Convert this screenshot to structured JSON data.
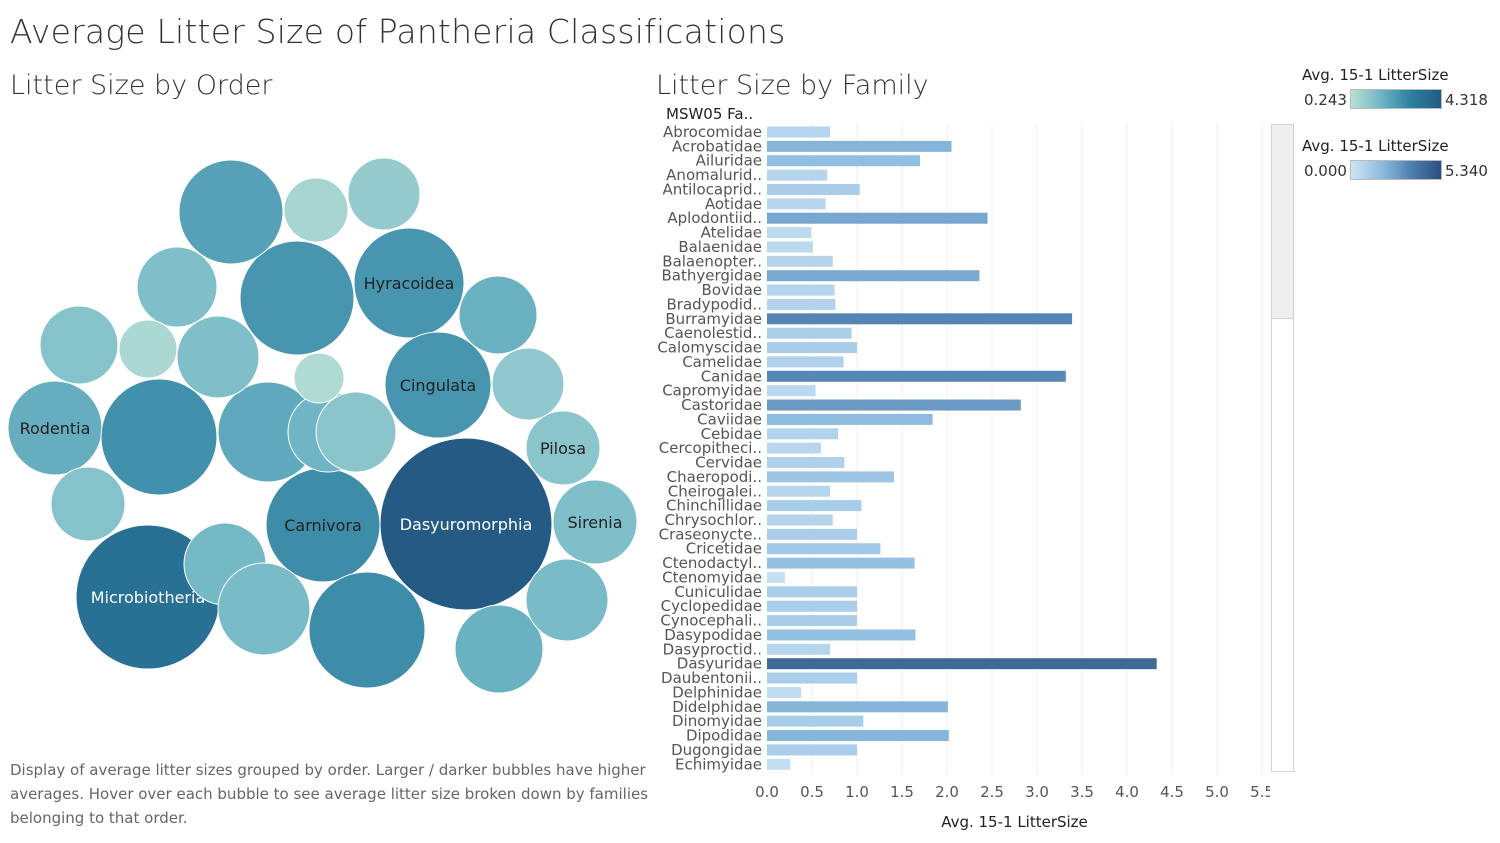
{
  "dashboard_title": "Average Litter Size of Pantheria Classifications",
  "order_view": {
    "title": "Litter Size by Order"
  },
  "family_view": {
    "title": "Litter Size by Family",
    "column_header": "MSW05 Fa.."
  },
  "description": "Display of average litter sizes grouped by order. Larger / darker bubbles have higher averages. Hover over each bubble to see average litter size broken down by families belonging to that order.",
  "legends": [
    {
      "title": "Avg. 15-1 LitterSize",
      "min_label": "0.243",
      "max_label": "4.318",
      "colors": [
        "#b9e0d6",
        "#6fb5c5",
        "#2b7f9f",
        "#255a85"
      ]
    },
    {
      "title": "Avg. 15-1 LitterSize",
      "min_label": "0.000",
      "max_label": "5.340",
      "colors": [
        "#cde4f4",
        "#8fbde0",
        "#4e7fb0",
        "#2a4e7e"
      ]
    }
  ],
  "chart_data": [
    {
      "type": "bubble",
      "title": "Litter Size by Order",
      "color_range": [
        0.243,
        4.318
      ],
      "bubbles": [
        {
          "label": "Dasyuromorphia",
          "value": 4.3
        },
        {
          "label": "Microbiotheria",
          "value": 3.5
        },
        {
          "label": "Carnivora",
          "value": 2.6
        },
        {
          "label": "Hyracoidea",
          "value": 2.4
        },
        {
          "label": "Cingulata",
          "value": 2.4
        },
        {
          "label": "Rodentia",
          "value": 1.8
        },
        {
          "label": "Sirenia",
          "value": 1.3
        },
        {
          "label": "Pilosa",
          "value": 1.1
        },
        {
          "label": "",
          "value": 2.6
        },
        {
          "label": "",
          "value": 2.5
        },
        {
          "label": "",
          "value": 2.4
        },
        {
          "label": "",
          "value": 2.1
        },
        {
          "label": "",
          "value": 1.9
        },
        {
          "label": "",
          "value": 1.7
        },
        {
          "label": "",
          "value": 1.7
        },
        {
          "label": "",
          "value": 1.6
        },
        {
          "label": "",
          "value": 1.5
        },
        {
          "label": "",
          "value": 1.4
        },
        {
          "label": "",
          "value": 1.4
        },
        {
          "label": "",
          "value": 1.3
        },
        {
          "label": "",
          "value": 1.3
        },
        {
          "label": "",
          "value": 1.2
        },
        {
          "label": "",
          "value": 1.2
        },
        {
          "label": "",
          "value": 1.1
        },
        {
          "label": "",
          "value": 1.0
        },
        {
          "label": "",
          "value": 0.9
        },
        {
          "label": "",
          "value": 0.6
        },
        {
          "label": "",
          "value": 0.5
        },
        {
          "label": "",
          "value": 0.4
        }
      ]
    },
    {
      "type": "bar",
      "orientation": "horizontal",
      "title": "Litter Size by Family",
      "xlabel": "Avg. 15-1 LitterSize",
      "xlim": [
        0,
        5.5
      ],
      "xticks": [
        "0.0",
        "0.5",
        "1.0",
        "1.5",
        "2.0",
        "2.5",
        "3.0",
        "3.5",
        "4.0",
        "4.5",
        "5.0",
        "5.5"
      ],
      "color_range": [
        0,
        5.34
      ],
      "categories": [
        "Abrocomidae",
        "Acrobatidae",
        "Ailuridae",
        "Anomalurid..",
        "Antilocaprid..",
        "Aotidae",
        "Aplodontiid..",
        "Atelidae",
        "Balaenidae",
        "Balaenopter..",
        "Bathyergidae",
        "Bovidae",
        "Bradypodid..",
        "Burramyidae",
        "Caenolestid..",
        "Calomyscidae",
        "Camelidae",
        "Canidae",
        "Capromyidae",
        "Castoridae",
        "Caviidae",
        "Cebidae",
        "Cercopitheci..",
        "Cervidae",
        "Chaeropodi..",
        "Cheirogalei..",
        "Chinchillidae",
        "Chrysochlor..",
        "Craseonycte..",
        "Cricetidae",
        "Ctenodactyl..",
        "Ctenomyidae",
        "Cuniculidae",
        "Cyclopedidae",
        "Cynocephali..",
        "Dasypodidae",
        "Dasyproctid..",
        "Dasyuridae",
        "Daubentonii..",
        "Delphinidae",
        "Didelphidae",
        "Dinomyidae",
        "Dipodidae",
        "Dugongidae",
        "Echimyidae"
      ],
      "values": [
        0.7,
        2.05,
        1.7,
        0.67,
        1.03,
        0.65,
        2.45,
        0.49,
        0.51,
        0.73,
        2.36,
        0.75,
        0.76,
        3.39,
        0.94,
        1.0,
        0.85,
        3.32,
        0.54,
        2.82,
        1.84,
        0.79,
        0.6,
        0.86,
        1.41,
        0.7,
        1.05,
        0.73,
        1.0,
        1.26,
        1.64,
        0.2,
        1.0,
        1.0,
        1.0,
        1.65,
        0.7,
        4.33,
        1.0,
        0.38,
        2.01,
        1.07,
        2.02,
        1.0,
        0.26
      ]
    }
  ]
}
